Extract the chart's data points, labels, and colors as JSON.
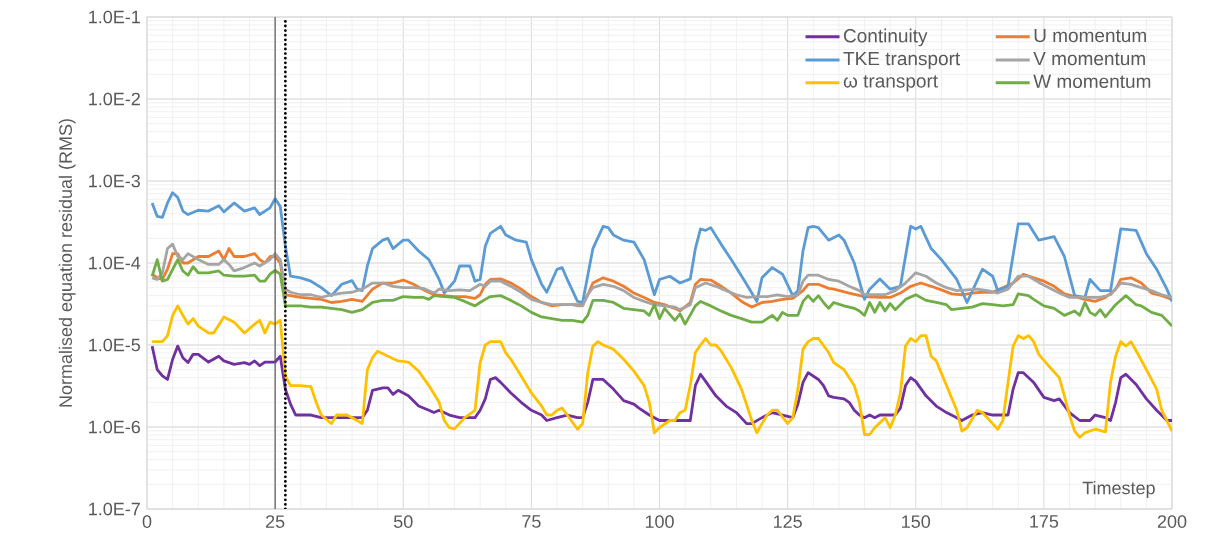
{
  "chart_data": {
    "type": "line",
    "xlabel": "Timestep",
    "ylabel": "Normalised equation residual (RMS)",
    "log": "y",
    "grid": true,
    "legend": "top right",
    "xlim": [
      0,
      200
    ],
    "xticks": [
      0,
      25,
      50,
      75,
      100,
      125,
      150,
      175,
      200
    ],
    "ylim": [
      1e-07,
      0.1
    ],
    "yticks": [
      {
        "value": 1e-07,
        "label": "1.0E-7"
      },
      {
        "value": 1e-06,
        "label": "1.0E-6"
      },
      {
        "value": 1e-05,
        "label": "1.0E-5"
      },
      {
        "value": 0.0001,
        "label": "1.0E-4"
      },
      {
        "value": 0.001,
        "label": "1.0E-3"
      },
      {
        "value": 0.01,
        "label": "1.0E-2"
      },
      {
        "value": 0.1,
        "label": "1.0E-1"
      }
    ],
    "ref_lines": [
      {
        "axis": "x",
        "value": 25,
        "color": "#595959",
        "line_style": "solid"
      },
      {
        "axis": "x",
        "value": 27,
        "color": "#000000",
        "line_style": "dotted"
      }
    ],
    "series": [
      {
        "name": "Continuity",
        "color": "#7030a0",
        "x": [
          1,
          2,
          3,
          4,
          5,
          6,
          7,
          8,
          9,
          10,
          12,
          14,
          15,
          17,
          19,
          20,
          21,
          22,
          23,
          25,
          26,
          27,
          28,
          29,
          30,
          32,
          34,
          36,
          38,
          40,
          42,
          43,
          44,
          46,
          47,
          48,
          49,
          51,
          53,
          55,
          56,
          57,
          59,
          61,
          63,
          64,
          65,
          66,
          67,
          68,
          69,
          71,
          73,
          75,
          77,
          78,
          80,
          82,
          84,
          85,
          86,
          87,
          89,
          91,
          93,
          95,
          96,
          98,
          100,
          102,
          104,
          106,
          107,
          108,
          109,
          111,
          113,
          115,
          117,
          118,
          120,
          122,
          124,
          126,
          127,
          128,
          129,
          131,
          132,
          133,
          134,
          136,
          137,
          138,
          139,
          140,
          141,
          142,
          143,
          145,
          146,
          147,
          148,
          149,
          150,
          152,
          154,
          156,
          158,
          159,
          161,
          163,
          165,
          167,
          168,
          169,
          170,
          171,
          173,
          175,
          177,
          178,
          180,
          182,
          184,
          185,
          187,
          188,
          189,
          190,
          191,
          193,
          195,
          197,
          199,
          200
        ],
        "values": [
          9.7e-06,
          5e-06,
          4.2e-06,
          3.8e-06,
          6.7e-06,
          9.7e-06,
          7e-06,
          6.1e-06,
          7.7e-06,
          7.7e-06,
          6.2e-06,
          7.3e-06,
          6.4e-06,
          5.8e-06,
          6.1e-06,
          5.8e-06,
          6.4e-06,
          5.6e-06,
          6.2e-06,
          6.2e-06,
          7.3e-06,
          2.9e-06,
          1.9e-06,
          1.4e-06,
          1.4e-06,
          1.4e-06,
          1.3e-06,
          1.3e-06,
          1.3e-06,
          1.3e-06,
          1.3e-06,
          1.6e-06,
          2.8e-06,
          3e-06,
          3e-06,
          2.5e-06,
          2.8e-06,
          2.4e-06,
          1.8e-06,
          1.6e-06,
          1.5e-06,
          1.6e-06,
          1.4e-06,
          1.3e-06,
          1.3e-06,
          1.3e-06,
          1.6e-06,
          2.2e-06,
          3.8e-06,
          4e-06,
          3.5e-06,
          2.6e-06,
          2e-06,
          1.6e-06,
          1.4e-06,
          1.2e-06,
          1.3e-06,
          1.4e-06,
          1.3e-06,
          1.3e-06,
          2e-06,
          3.8e-06,
          3.8e-06,
          2.9e-06,
          2.1e-06,
          1.9e-06,
          1.7e-06,
          1.4e-06,
          1.2e-06,
          1.2e-06,
          1.2e-06,
          1.2e-06,
          3.2e-06,
          4.4e-06,
          3.6e-06,
          2.4e-06,
          1.8e-06,
          1.5e-06,
          1.1e-06,
          1.1e-06,
          1.3e-06,
          1.5e-06,
          1.4e-06,
          1.3e-06,
          1.9e-06,
          3.5e-06,
          4.6e-06,
          3.8e-06,
          3.2e-06,
          2.4e-06,
          2.3e-06,
          2.2e-06,
          2e-06,
          1.6e-06,
          1.4e-06,
          1.3e-06,
          1.4e-06,
          1.3e-06,
          1.4e-06,
          1.4e-06,
          1.4e-06,
          1.7e-06,
          3.2e-06,
          4e-06,
          3.6e-06,
          2.4e-06,
          1.8e-06,
          1.5e-06,
          1.3e-06,
          1.2e-06,
          1.4e-06,
          1.5e-06,
          1.4e-06,
          1.4e-06,
          1.4e-06,
          2.9e-06,
          4.6e-06,
          4.6e-06,
          3.5e-06,
          2.3e-06,
          2.1e-06,
          2.2e-06,
          1.5e-06,
          1.2e-06,
          1.2e-06,
          1.4e-06,
          1.3e-06,
          1.2e-06,
          2e-06,
          4e-06,
          4.4e-06,
          3.3e-06,
          2.2e-06,
          1.6e-06,
          1.2e-06,
          1.2e-06
        ]
      },
      {
        "name": "U momentum",
        "color": "#ed7d31",
        "x": [
          1,
          2,
          3,
          4,
          5,
          6,
          7,
          8,
          10,
          12,
          14,
          15,
          16,
          17,
          19,
          21,
          22,
          23,
          24,
          25,
          26,
          27,
          28,
          30,
          32,
          34,
          36,
          38,
          40,
          42,
          44,
          46,
          48,
          50,
          52,
          54,
          56,
          58,
          60,
          62,
          64,
          65,
          66,
          67,
          69,
          71,
          73,
          75,
          77,
          79,
          81,
          83,
          85,
          86,
          87,
          89,
          91,
          93,
          95,
          97,
          99,
          101,
          103,
          104,
          106,
          107,
          108,
          110,
          112,
          114,
          116,
          118,
          120,
          122,
          124,
          126,
          128,
          129,
          131,
          133,
          134,
          137,
          140,
          143,
          145,
          147,
          149,
          151,
          153,
          155,
          157,
          159,
          161,
          163,
          165,
          167,
          169,
          171,
          173,
          175,
          177,
          179,
          181,
          183,
          185,
          187,
          189,
          190,
          192,
          194,
          196,
          198,
          200
        ],
        "values": [
          7.3e-05,
          6.6e-05,
          6.3e-05,
          8.4e-05,
          0.00013,
          0.00013,
          0.0001,
          0.0001,
          0.00012,
          0.00012,
          0.00014,
          0.00011,
          0.00015,
          0.00012,
          0.00012,
          0.00013,
          0.00011,
          0.0001,
          0.00012,
          0.00012,
          0.0001,
          4.1e-05,
          4e-05,
          3.8e-05,
          3.7e-05,
          3.6e-05,
          3.3e-05,
          3.4e-05,
          3.6e-05,
          3.4e-05,
          4.8e-05,
          5.7e-05,
          5.7e-05,
          6.2e-05,
          5.5e-05,
          4.7e-05,
          4.1e-05,
          4e-05,
          3.9e-05,
          3.9e-05,
          3.7e-05,
          4.1e-05,
          5.5e-05,
          6.3e-05,
          6.4e-05,
          5.7e-05,
          4.8e-05,
          3.9e-05,
          3.3e-05,
          3e-05,
          3.1e-05,
          3.1e-05,
          3.1e-05,
          4.1e-05,
          5.7e-05,
          6.6e-05,
          6e-05,
          5.2e-05,
          4.3e-05,
          3.8e-05,
          3.3e-05,
          3.1e-05,
          2.8e-05,
          2.6e-05,
          3.3e-05,
          5.5e-05,
          6.3e-05,
          6.2e-05,
          5.2e-05,
          4.3e-05,
          3.4e-05,
          2.9e-05,
          3.3e-05,
          3.4e-05,
          3.6e-05,
          3.7e-05,
          4.6e-05,
          5.5e-05,
          5.5e-05,
          4.9e-05,
          4.8e-05,
          4.3e-05,
          3.9e-05,
          3.8e-05,
          3.8e-05,
          4.3e-05,
          5.2e-05,
          5.7e-05,
          5.2e-05,
          4.7e-05,
          4.2e-05,
          4.1e-05,
          4.3e-05,
          4.4e-05,
          4.4e-05,
          null,
          5.7e-05,
          7.3e-05,
          6.6e-05,
          6e-05,
          5.2e-05,
          4.2e-05,
          3.9e-05,
          3.6e-05,
          3.4e-05,
          3.8e-05,
          4.8e-05,
          6.3e-05,
          6.6e-05,
          5.7e-05,
          4.3e-05,
          4e-05,
          3.6e-05
        ]
      },
      {
        "name": "TKE transport",
        "color": "#5b9bd5",
        "x": [
          1,
          2,
          3,
          4,
          5,
          6,
          7,
          8,
          10,
          12,
          14,
          15,
          17,
          19,
          21,
          22,
          24,
          25,
          26,
          27,
          28,
          30,
          32,
          34,
          36,
          38,
          40,
          41,
          42,
          43,
          44,
          46,
          47,
          48,
          50,
          51,
          53,
          55,
          57,
          58,
          60,
          61,
          63,
          64,
          65,
          66,
          67,
          69,
          70,
          72,
          74,
          75,
          77,
          78,
          80,
          81,
          82,
          84,
          85,
          87,
          89,
          90,
          91,
          93,
          95,
          97,
          99,
          100,
          102,
          104,
          106,
          107,
          108,
          109,
          110,
          112,
          114,
          117,
          119,
          120,
          122,
          124,
          126,
          127,
          128,
          129,
          130,
          131,
          133,
          135,
          136,
          138,
          140,
          141,
          143,
          145,
          147,
          149,
          150,
          151,
          153,
          155,
          158,
          160,
          163,
          165,
          166,
          168,
          170,
          172,
          174,
          177,
          179,
          181,
          183,
          184,
          186,
          188,
          190,
          193,
          195,
          197,
          199,
          200
        ],
        "values": [
          0.00054,
          0.00037,
          0.00036,
          0.00054,
          0.00072,
          0.00063,
          0.00043,
          0.00039,
          0.00044,
          0.00043,
          0.0005,
          0.00042,
          0.00054,
          0.00043,
          0.00047,
          0.00039,
          0.00047,
          0.00061,
          0.00049,
          0.00016,
          6.9e-05,
          6.6e-05,
          6e-05,
          5e-05,
          4e-05,
          5.5e-05,
          6.1e-05,
          4.8e-05,
          4.6e-05,
          9.2e-05,
          0.00015,
          0.00019,
          0.0002,
          0.00015,
          0.00019,
          0.00019,
          0.00014,
          0.00011,
          6.3e-05,
          4.3e-05,
          6e-05,
          9.2e-05,
          9.2e-05,
          6e-05,
          6.3e-05,
          0.00016,
          0.00023,
          0.00028,
          0.00022,
          0.00019,
          0.00018,
          0.00011,
          5.5e-05,
          4.4e-05,
          8.4e-05,
          8.8e-05,
          6.3e-05,
          3.4e-05,
          3.3e-05,
          0.00015,
          0.00028,
          0.00027,
          0.00022,
          0.00019,
          0.00018,
          0.00011,
          4.1e-05,
          6.3e-05,
          6.9e-05,
          5.7e-05,
          6.4e-05,
          0.00015,
          0.00026,
          0.00025,
          0.00027,
          0.00017,
          0.00011,
          5.5e-05,
          3.4e-05,
          6.6e-05,
          8.8e-05,
          7.3e-05,
          4e-05,
          4.6e-05,
          0.00014,
          0.00027,
          0.00028,
          0.00027,
          0.00019,
          0.00022,
          0.00019,
          0.0001,
          3.6e-05,
          4.8e-05,
          6.4e-05,
          4.8e-05,
          5.2e-05,
          0.00028,
          0.00026,
          0.00028,
          0.00015,
          0.00011,
          6.3e-05,
          3.3e-05,
          8.4e-05,
          6.9e-05,
          4.6e-05,
          5.2e-05,
          0.0003,
          0.0003,
          0.00019,
          0.00021,
          0.00012,
          4e-05,
          3.8e-05,
          6.3e-05,
          4.6e-05,
          4.6e-05,
          0.00026,
          0.00025,
          0.00013,
          8.4e-05,
          4.8e-05,
          3.4e-05
        ]
      },
      {
        "name": "V momentum",
        "color": "#a5a5a5",
        "x": [
          1,
          2,
          3,
          4,
          5,
          6,
          7,
          8,
          10,
          12,
          14,
          15,
          16,
          17,
          19,
          21,
          22,
          24,
          25,
          26,
          27,
          28,
          30,
          32,
          34,
          36,
          38,
          40,
          42,
          44,
          46,
          48,
          50,
          52,
          54,
          56,
          57,
          59,
          61,
          63,
          65,
          66,
          67,
          69,
          71,
          73,
          75,
          77,
          79,
          81,
          83,
          84,
          85,
          86,
          87,
          89,
          91,
          93,
          95,
          97,
          99,
          101,
          103,
          104,
          106,
          107,
          109,
          111,
          113,
          115,
          117,
          119,
          121,
          123,
          125,
          127,
          128,
          129,
          131,
          133,
          135,
          137,
          139,
          140,
          142,
          144,
          146,
          148,
          150,
          152,
          154,
          156,
          158,
          160,
          162,
          164,
          166,
          168,
          170,
          172,
          174,
          176,
          178,
          180,
          182,
          184,
          186,
          188,
          190,
          192,
          194,
          196,
          198,
          200
        ],
        "values": [
          6.6e-05,
          6.3e-05,
          7.6e-05,
          0.00015,
          0.00017,
          0.00012,
          0.00011,
          0.00013,
          0.00011,
          9.6e-05,
          9.6e-05,
          0.00011,
          9.6e-05,
          8e-05,
          8.8e-05,
          0.0001,
          9.2e-05,
          0.00011,
          0.00013,
          0.00011,
          4.8e-05,
          4.4e-05,
          4.1e-05,
          4.1e-05,
          3.8e-05,
          4.1e-05,
          4.3e-05,
          4.4e-05,
          4.8e-05,
          5.7e-05,
          5.7e-05,
          5.2e-05,
          5e-05,
          5e-05,
          4.9e-05,
          4.3e-05,
          4.8e-05,
          4.6e-05,
          4.7e-05,
          4.6e-05,
          5.5e-05,
          5.2e-05,
          6e-05,
          6e-05,
          5.2e-05,
          4.4e-05,
          3.6e-05,
          3.3e-05,
          3.1e-05,
          3.1e-05,
          3.1e-05,
          3e-05,
          3e-05,
          4.1e-05,
          5e-05,
          5.5e-05,
          5.2e-05,
          4.6e-05,
          3.8e-05,
          3.4e-05,
          3.1e-05,
          3e-05,
          2.9e-05,
          2.7e-05,
          3.1e-05,
          5e-05,
          5.7e-05,
          5.2e-05,
          4.6e-05,
          4.1e-05,
          3.8e-05,
          3.9e-05,
          3.9e-05,
          4.1e-05,
          3.9e-05,
          4.1e-05,
          6e-05,
          7.1e-05,
          7.1e-05,
          6.3e-05,
          6e-05,
          5.2e-05,
          4.6e-05,
          4.1e-05,
          4.1e-05,
          4.1e-05,
          4.6e-05,
          5.7e-05,
          7.6e-05,
          6.9e-05,
          5.7e-05,
          5e-05,
          4.6e-05,
          4.7e-05,
          4.8e-05,
          4.6e-05,
          4.3e-05,
          4.8e-05,
          6.9e-05,
          6.9e-05,
          5.8e-05,
          5e-05,
          4.3e-05,
          3.8e-05,
          3.8e-05,
          3.8e-05,
          3.8e-05,
          4.1e-05,
          5.7e-05,
          5.5e-05,
          5e-05,
          4.6e-05,
          4.1e-05,
          3.8e-05
        ]
      },
      {
        "name": "ω transport",
        "color": "#ffc000",
        "x": [
          1,
          2,
          3,
          4,
          5,
          6,
          7,
          8,
          9,
          10,
          12,
          13,
          15,
          17,
          19,
          21,
          22,
          23,
          24,
          25,
          26,
          27,
          28,
          30,
          32,
          33,
          34,
          36,
          37,
          39,
          41,
          42,
          43,
          44,
          45,
          47,
          49,
          51,
          53,
          55,
          57,
          58,
          59,
          60,
          62,
          64,
          65,
          66,
          67,
          68,
          69,
          70,
          71,
          73,
          75,
          77,
          78,
          79,
          80,
          81,
          82,
          84,
          85,
          86,
          87,
          88,
          89,
          91,
          93,
          95,
          97,
          98,
          99,
          100,
          102,
          103,
          104,
          105,
          106,
          107,
          108,
          109,
          110,
          111,
          112,
          114,
          116,
          118,
          119,
          120,
          121,
          122,
          123,
          125,
          126,
          127,
          128,
          129,
          130,
          131,
          133,
          134,
          136,
          138,
          139,
          140,
          141,
          142,
          144,
          145,
          146,
          147,
          148,
          149,
          150,
          151,
          152,
          153,
          154,
          156,
          158,
          159,
          160,
          162,
          163,
          165,
          166,
          167,
          168,
          169,
          170,
          171,
          172,
          173,
          174,
          176,
          178,
          179,
          180,
          181,
          182,
          183,
          185,
          187,
          188,
          189,
          190,
          191,
          192,
          193,
          195,
          197,
          198,
          199,
          200
        ],
        "values": [
          1.1e-05,
          1.1e-05,
          1.1e-05,
          1.3e-05,
          2.3e-05,
          3e-05,
          2.3e-05,
          1.8e-05,
          2.1e-05,
          1.7e-05,
          1.4e-05,
          1.4e-05,
          2.2e-05,
          1.9e-05,
          1.4e-05,
          1.8e-05,
          2e-05,
          1.4e-05,
          1.9e-05,
          1.8e-05,
          2e-05,
          4.2e-06,
          3.2e-06,
          3.2e-06,
          3.1e-06,
          2e-06,
          1.4e-06,
          1.1e-06,
          1.4e-06,
          1.4e-06,
          1.2e-06,
          1.1e-06,
          5e-06,
          7e-06,
          8.4e-06,
          7.3e-06,
          6.4e-06,
          6.2e-06,
          4.8e-06,
          3.2e-06,
          2e-06,
          1.2e-06,
          9.8e-07,
          9.5e-07,
          1.3e-06,
          1.6e-06,
          6.1e-06,
          1e-05,
          1.1e-05,
          1.1e-05,
          1.1e-05,
          8e-06,
          6.7e-06,
          4.2e-06,
          2.6e-06,
          1.8e-06,
          1.4e-06,
          1.4e-06,
          1.6e-06,
          1.7e-06,
          1.4e-06,
          9.4e-07,
          1.1e-06,
          4.6e-06,
          9.7e-06,
          1.1e-05,
          1e-05,
          8.9e-06,
          6.7e-06,
          4.8e-06,
          3.2e-06,
          2e-06,
          8.5e-07,
          9.8e-07,
          1.2e-06,
          1.2e-06,
          1.5e-06,
          1.6e-06,
          3.2e-06,
          8.1e-06,
          1e-05,
          1.2e-05,
          1e-05,
          1e-05,
          8.5e-06,
          5.3e-06,
          2.9e-06,
          1.2e-06,
          8.5e-07,
          1.1e-06,
          1.4e-06,
          1.6e-06,
          1.6e-06,
          1.1e-06,
          1.3e-06,
          2.9e-06,
          8.9e-06,
          1.1e-05,
          1.2e-05,
          1.2e-05,
          8.1e-06,
          6.1e-06,
          5e-06,
          3.2e-06,
          2e-06,
          8.1e-07,
          8.1e-07,
          9.8e-07,
          1.3e-06,
          9.8e-07,
          1.4e-06,
          2.6e-06,
          9.7e-06,
          1.2e-05,
          1.1e-05,
          1.3e-05,
          1.3e-05,
          7.3e-06,
          6.4e-06,
          3.2e-06,
          1.6e-06,
          8.9e-07,
          9.8e-07,
          1.6e-06,
          1.5e-06,
          1.1e-06,
          9.4e-07,
          1.2e-06,
          3.5e-06,
          9.7e-06,
          1.3e-05,
          1.2e-05,
          1.3e-05,
          1.1e-05,
          7.7e-06,
          5.5e-06,
          4e-06,
          2.4e-06,
          1.4e-06,
          8.9e-07,
          7.5e-07,
          8.5e-07,
          9.4e-07,
          8.7e-07,
          3.5e-06,
          7.3e-06,
          1.1e-05,
          9.7e-06,
          1.1e-05,
          8.5e-06,
          5e-06,
          2.9e-06,
          1.6e-06,
          1.2e-06,
          8.9e-07
        ]
      },
      {
        "name": "W momentum",
        "color": "#70ad47",
        "x": [
          1,
          2,
          3,
          4,
          6,
          7,
          8,
          9,
          10,
          12,
          14,
          15,
          17,
          19,
          21,
          22,
          23,
          24,
          25,
          26,
          27,
          28,
          30,
          32,
          34,
          36,
          38,
          40,
          42,
          44,
          46,
          48,
          50,
          52,
          54,
          55,
          56,
          58,
          60,
          62,
          64,
          65,
          66,
          67,
          69,
          71,
          73,
          75,
          77,
          79,
          81,
          83,
          85,
          86,
          87,
          89,
          91,
          93,
          95,
          97,
          98,
          99,
          100,
          101,
          103,
          104,
          105,
          107,
          108,
          110,
          112,
          114,
          116,
          118,
          120,
          122,
          123,
          124,
          125,
          127,
          128,
          129,
          130,
          131,
          132,
          133,
          134,
          136,
          138,
          139,
          140,
          141,
          142,
          143,
          144,
          145,
          146,
          148,
          150,
          152,
          154,
          156,
          157,
          159,
          161,
          163,
          165,
          167,
          169,
          170,
          172,
          173,
          175,
          177,
          179,
          181,
          182,
          183,
          184,
          185,
          186,
          187,
          189,
          191,
          193,
          194,
          196,
          198,
          200
        ],
        "values": [
          6.9e-05,
          0.00011,
          6e-05,
          6.3e-05,
          0.00011,
          8e-05,
          7.1e-05,
          9e-05,
          7.6e-05,
          7.6e-05,
          8e-05,
          7.1e-05,
          6.9e-05,
          6.9e-05,
          7.1e-05,
          6e-05,
          6e-05,
          7.3e-05,
          8.1e-05,
          7.3e-05,
          3e-05,
          3e-05,
          3e-05,
          2.9e-05,
          2.9e-05,
          2.8e-05,
          2.7e-05,
          2.5e-05,
          2.7e-05,
          3.3e-05,
          3.5e-05,
          3.5e-05,
          3.9e-05,
          3.8e-05,
          3.8e-05,
          3.6e-05,
          4e-05,
          3.9e-05,
          3.8e-05,
          3.4e-05,
          3e-05,
          3.3e-05,
          3.6e-05,
          3.9e-05,
          4e-05,
          3.5e-05,
          3e-05,
          2.5e-05,
          2.2e-05,
          2.1e-05,
          2e-05,
          2e-05,
          1.9e-05,
          2.3e-05,
          3.5e-05,
          3.5e-05,
          3.3e-05,
          2.8e-05,
          2.7e-05,
          2.6e-05,
          2.3e-05,
          3.1e-05,
          2.1e-05,
          2.8e-05,
          2e-05,
          2.4e-05,
          1.8e-05,
          3e-05,
          3.4e-05,
          3e-05,
          2.6e-05,
          2.3e-05,
          2.1e-05,
          1.9e-05,
          1.9e-05,
          2.3e-05,
          2e-05,
          2.5e-05,
          2.3e-05,
          2.3e-05,
          3.4e-05,
          4e-05,
          3.4e-05,
          4e-05,
          3.3e-05,
          2.8e-05,
          3.3e-05,
          3e-05,
          2.8e-05,
          2.6e-05,
          2.3e-05,
          3.3e-05,
          2.5e-05,
          3.3e-05,
          2.6e-05,
          3.2e-05,
          2.7e-05,
          3.6e-05,
          4.1e-05,
          3.5e-05,
          3.3e-05,
          3.1e-05,
          2.7e-05,
          2.8e-05,
          2.9e-05,
          3.2e-05,
          3.1e-05,
          3e-05,
          3.1e-05,
          4.2e-05,
          4e-05,
          3.6e-05,
          3e-05,
          2.8e-05,
          2.3e-05,
          2.6e-05,
          2.3e-05,
          3.3e-05,
          2.5e-05,
          2.3e-05,
          2.7e-05,
          2.2e-05,
          3.1e-05,
          4e-05,
          3.1e-05,
          3e-05,
          2.5e-05,
          2.3e-05,
          1.7e-05
        ]
      }
    ]
  }
}
